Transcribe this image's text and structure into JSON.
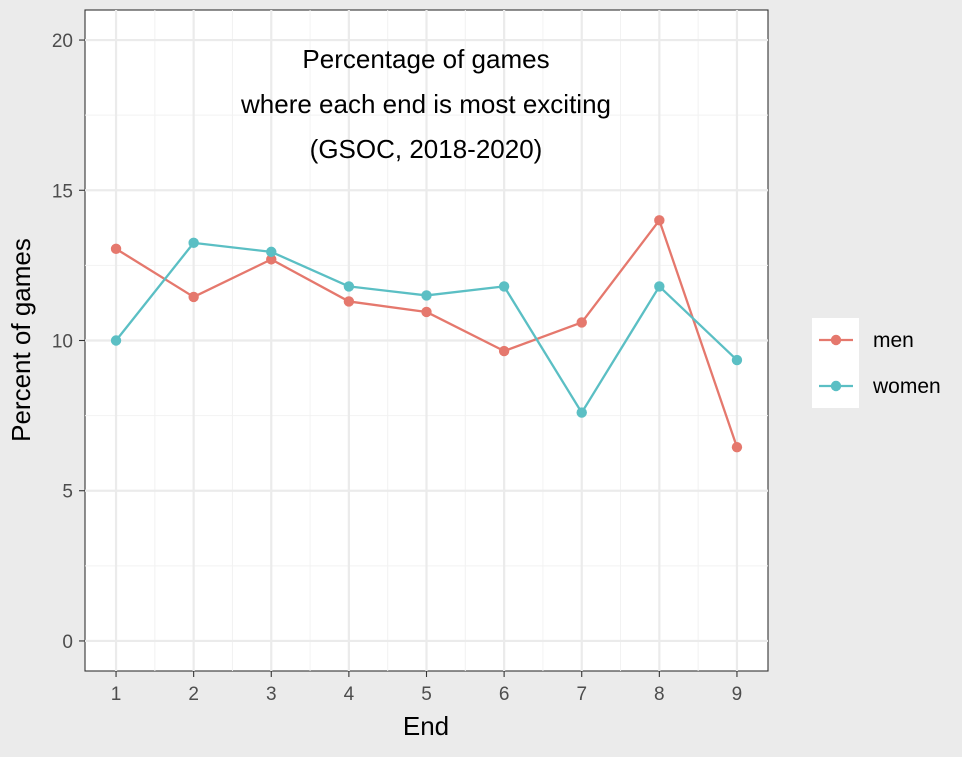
{
  "chart_data": {
    "type": "line",
    "title_lines": [
      "Percentage of games",
      "where each end is most exciting",
      "(GSOC, 2018-2020)"
    ],
    "xlabel": "End",
    "ylabel": "Percent of games",
    "x": [
      1,
      2,
      3,
      4,
      5,
      6,
      7,
      8,
      9
    ],
    "xticks": [
      "1",
      "2",
      "3",
      "4",
      "5",
      "6",
      "7",
      "8",
      "9"
    ],
    "yticks": [
      0,
      5,
      10,
      15,
      20
    ],
    "ytick_labels": [
      "0",
      "5",
      "10",
      "15",
      "20"
    ],
    "xlim": [
      0.6,
      9.4
    ],
    "ylim": [
      -1,
      21
    ],
    "grid": true,
    "legend_position": "right",
    "series": [
      {
        "name": "men",
        "color": "#e5786d",
        "values": [
          13.05,
          11.45,
          12.7,
          11.3,
          10.95,
          9.65,
          10.6,
          14.0,
          6.45
        ]
      },
      {
        "name": "women",
        "color": "#5bbfc4",
        "values": [
          10.0,
          13.25,
          12.95,
          11.8,
          11.5,
          11.8,
          7.6,
          11.8,
          9.35
        ]
      }
    ]
  }
}
